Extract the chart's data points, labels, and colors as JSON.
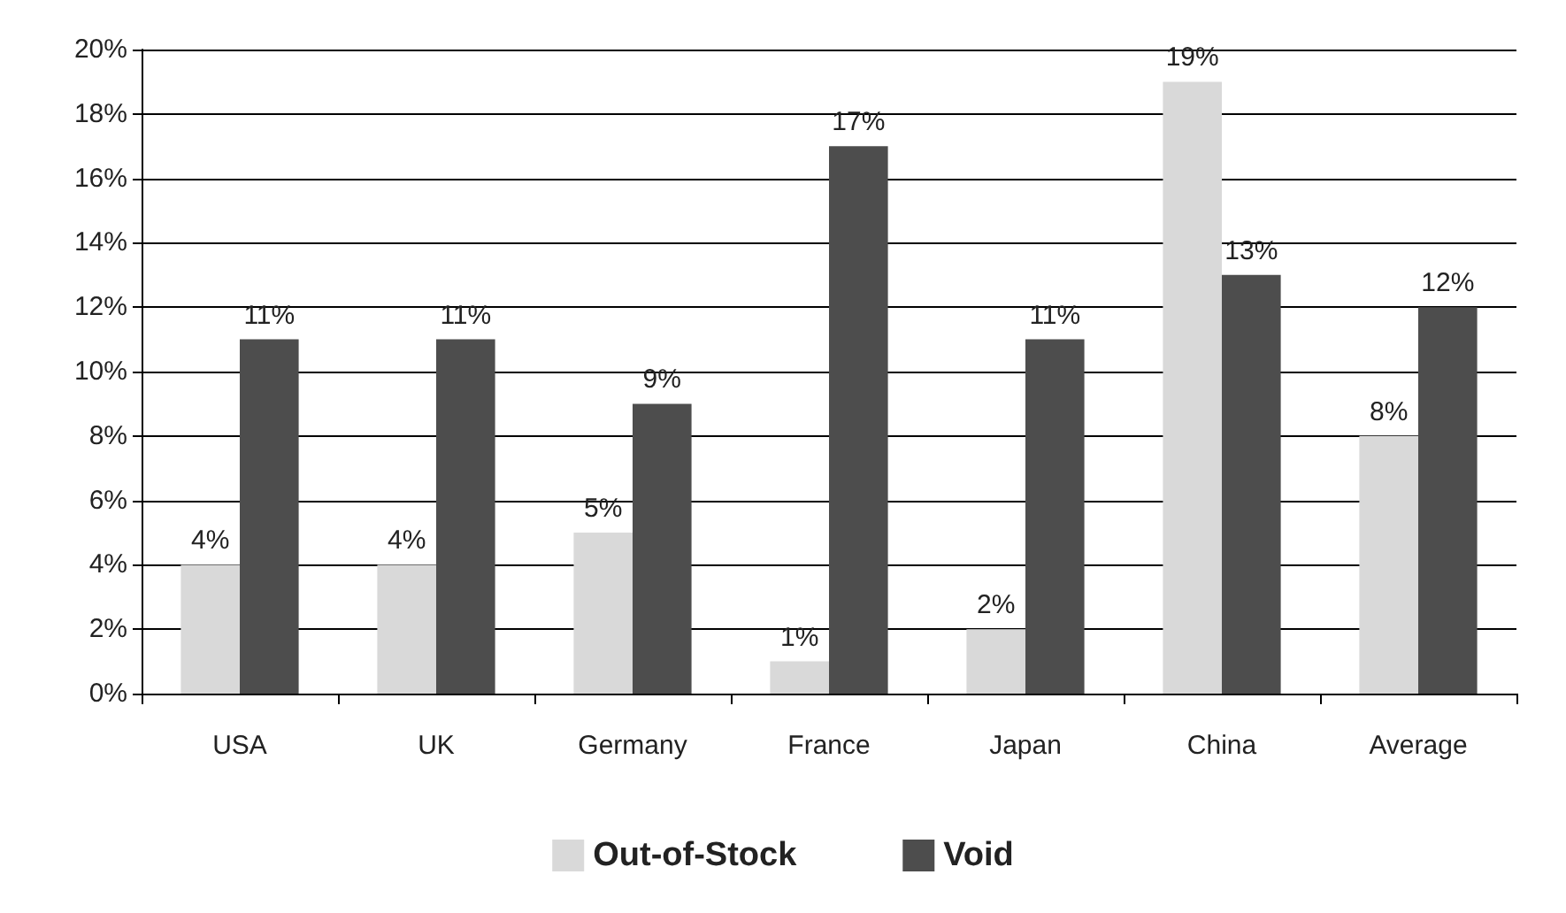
{
  "chart_data": {
    "type": "bar",
    "categories": [
      "USA",
      "UK",
      "Germany",
      "France",
      "Japan",
      "China",
      "Average"
    ],
    "series": [
      {
        "name": "Out-of-Stock",
        "color": "#d9d9d9",
        "values": [
          4,
          4,
          5,
          1,
          2,
          19,
          8
        ],
        "value_labels": [
          "4%",
          "4%",
          "5%",
          "1%",
          "2%",
          "19%",
          "8%"
        ]
      },
      {
        "name": "Void",
        "color": "#4d4d4d",
        "values": [
          11,
          11,
          9,
          17,
          11,
          13,
          12
        ],
        "value_labels": [
          "11%",
          "11%",
          "9%",
          "17%",
          "11%",
          "13%",
          "12%"
        ]
      }
    ],
    "ylim": [
      0,
      20
    ],
    "yticks": [
      {
        "value": 0,
        "label": "0%"
      },
      {
        "value": 2,
        "label": "2%"
      },
      {
        "value": 4,
        "label": "4%"
      },
      {
        "value": 6,
        "label": "6%"
      },
      {
        "value": 8,
        "label": "8%"
      },
      {
        "value": 10,
        "label": "10%"
      },
      {
        "value": 12,
        "label": "12%"
      },
      {
        "value": 14,
        "label": "14%"
      },
      {
        "value": 16,
        "label": "16%"
      },
      {
        "value": 18,
        "label": "18%"
      },
      {
        "value": 20,
        "label": "20%"
      }
    ],
    "grid": "y",
    "legend": "bottom"
  }
}
